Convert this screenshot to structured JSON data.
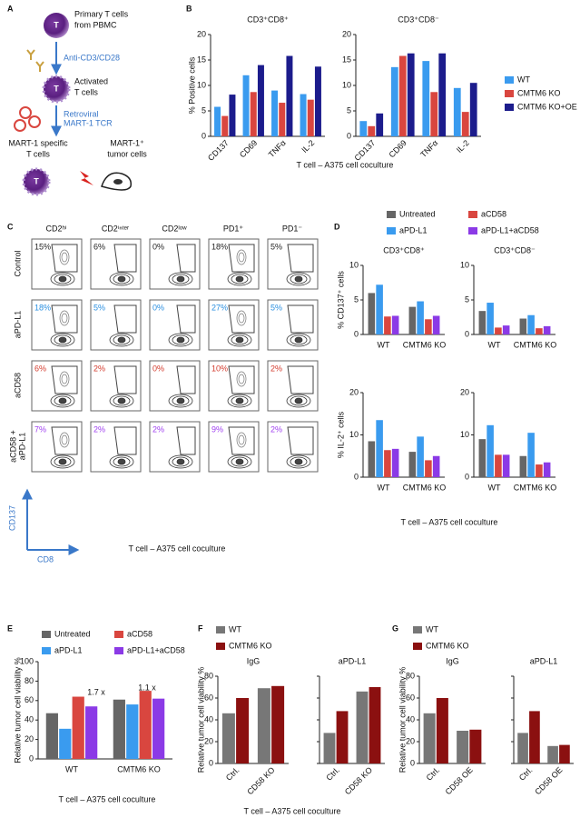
{
  "panel_labels": [
    "A",
    "B",
    "C",
    "D",
    "E",
    "F",
    "G"
  ],
  "panel_a": {
    "cell": "T",
    "items": [
      [
        "Primary T cells",
        "from PBMC"
      ],
      [
        "Anti-CD3/CD28"
      ],
      [
        "Activated",
        "T cells"
      ],
      [
        "Retroviral",
        "MART-1 TCR"
      ],
      [
        "MART-1 specific",
        "T cells"
      ],
      [
        "MART-1⁺",
        "tumor cells"
      ]
    ]
  },
  "panel_c": {
    "columns": [
      "CD2ʰⁱ",
      "CD2ⁱⁿᵗᵉʳ",
      "CD2ˡᵒʷ",
      "PD1⁺",
      "PD1⁻"
    ],
    "rows": [
      [
        "Control"
      ],
      [
        "aPD-L1"
      ],
      [
        "aCD58"
      ],
      [
        "aCD58 +",
        "aPD-L1"
      ]
    ],
    "row_colors": [
      "#222222",
      "#2a8fe0",
      "#d33a2c",
      "#a040f0"
    ],
    "percents": [
      [
        "15%",
        "6%",
        "0%",
        "18%",
        "5%"
      ],
      [
        "18%",
        "5%",
        "0%",
        "27%",
        "5%"
      ],
      [
        "6%",
        "2%",
        "0%",
        "10%",
        "2%"
      ],
      [
        "7%",
        "2%",
        "2%",
        "9%",
        "2%"
      ]
    ],
    "y_marker": "CD137",
    "x_marker": "CD8",
    "caption": "T cell – A375 cell coculture"
  },
  "chart_data": [
    {
      "type": "bar",
      "ylabel": "% Positive cells",
      "xlabel": "T cell – A375 cell coculture",
      "ylim": [
        0,
        20
      ],
      "yticks": [
        0,
        5,
        10,
        15,
        20
      ],
      "legend": [
        {
          "name": "WT",
          "color": "#3a9bef"
        },
        {
          "name": "CMTM6 KO",
          "color": "#d9463f"
        },
        {
          "name": "CMTM6 KO+OE",
          "color": "#1c1c8c"
        }
      ],
      "subplots": [
        {
          "title": "CD3⁺CD8⁺",
          "categories": [
            "CD137",
            "CD69",
            "TNFα",
            "IL-2"
          ],
          "series": [
            {
              "values": [
                5.8,
                12,
                9,
                8.3
              ]
            },
            {
              "values": [
                4,
                8.7,
                6.6,
                7.2
              ]
            },
            {
              "values": [
                8.2,
                14,
                15.8,
                13.7
              ]
            }
          ]
        },
        {
          "title": "CD3⁺CD8⁻",
          "categories": [
            "CD137",
            "CD69",
            "TNFα",
            "IL-2"
          ],
          "series": [
            {
              "values": [
                3,
                13.6,
                14.8,
                9.5
              ]
            },
            {
              "values": [
                2,
                15.8,
                8.7,
                4.8
              ]
            },
            {
              "values": [
                4.5,
                16.3,
                16.3,
                10.5
              ]
            }
          ]
        }
      ]
    },
    {
      "type": "bar",
      "xlabel": "T cell – A375 cell coculture",
      "legend": [
        {
          "name": "Untreated",
          "color": "#666666"
        },
        {
          "name": "aPD-L1",
          "color": "#3a9bef"
        },
        {
          "name": "aCD58",
          "color": "#d9463f"
        },
        {
          "name": "aPD-L1+aCD58",
          "color": "#8b3ae6"
        }
      ],
      "subplots": [
        {
          "title": "CD3⁺CD8⁺",
          "ylabel": "% CD137⁺ cells",
          "ylim": [
            0,
            10
          ],
          "yticks": [
            0,
            5,
            10
          ],
          "categories": [
            "WT",
            "CMTM6 KO"
          ],
          "series": [
            {
              "values": [
                6,
                4
              ]
            },
            {
              "values": [
                7.2,
                4.8
              ]
            },
            {
              "values": [
                2.6,
                2.2
              ]
            },
            {
              "values": [
                2.7,
                2.7
              ]
            }
          ]
        },
        {
          "title": "CD3⁺CD8⁻",
          "ylim": [
            0,
            10
          ],
          "yticks": [
            0,
            5,
            10
          ],
          "categories": [
            "WT",
            "CMTM6 KO"
          ],
          "series": [
            {
              "values": [
                3.4,
                2.3
              ]
            },
            {
              "values": [
                4.6,
                2.8
              ]
            },
            {
              "values": [
                1,
                0.9
              ]
            },
            {
              "values": [
                1.3,
                1.2
              ]
            }
          ]
        },
        {
          "ylabel": "% IL-2⁺ cells",
          "ylim": [
            0,
            20
          ],
          "yticks": [
            0,
            10,
            20
          ],
          "categories": [
            "WT",
            "CMTM6 KO"
          ],
          "series": [
            {
              "values": [
                8.5,
                6
              ]
            },
            {
              "values": [
                13.5,
                9.6
              ]
            },
            {
              "values": [
                6.4,
                4
              ]
            },
            {
              "values": [
                6.7,
                5
              ]
            }
          ]
        },
        {
          "ylim": [
            0,
            20
          ],
          "yticks": [
            0,
            10,
            20
          ],
          "categories": [
            "WT",
            "CMTM6 KO"
          ],
          "series": [
            {
              "values": [
                9,
                5
              ]
            },
            {
              "values": [
                12.3,
                10.5
              ]
            },
            {
              "values": [
                5.3,
                3
              ]
            },
            {
              "values": [
                5.3,
                3.5
              ]
            }
          ]
        }
      ]
    },
    {
      "type": "bar",
      "ylabel": "Relative tumor cell viability %",
      "xlabel": "T cell – A375 cell coculture",
      "ylim": [
        0,
        100
      ],
      "yticks": [
        0,
        20,
        40,
        60,
        80,
        100
      ],
      "legend": [
        {
          "name": "Untreated",
          "color": "#666666"
        },
        {
          "name": "aPD-L1",
          "color": "#3a9bef"
        },
        {
          "name": "aCD58",
          "color": "#d9463f"
        },
        {
          "name": "aPD-L1+aCD58",
          "color": "#8b3ae6"
        }
      ],
      "annotations": [
        "1.7 x",
        "1.1 x"
      ],
      "subplots": [
        {
          "categories": [
            "WT",
            "CMTM6 KO"
          ],
          "series": [
            {
              "values": [
                47,
                61
              ]
            },
            {
              "values": [
                31,
                56
              ]
            },
            {
              "values": [
                64,
                70
              ]
            },
            {
              "values": [
                54,
                62
              ]
            }
          ]
        }
      ]
    },
    {
      "type": "bar",
      "ylabel": "Relative tumor cell viability %",
      "xlabel": "T cell – A375 cell coculture",
      "ylim": [
        0,
        80
      ],
      "yticks": [
        0,
        20,
        40,
        60,
        80
      ],
      "legend": [
        {
          "name": "WT",
          "color": "#777777"
        },
        {
          "name": "CMTM6 KO",
          "color": "#8b1010"
        }
      ],
      "subplots": [
        {
          "title": "IgG",
          "categories": [
            "Ctrl.",
            "CD58 KO"
          ],
          "series": [
            {
              "values": [
                46,
                69
              ]
            },
            {
              "values": [
                60,
                71
              ]
            }
          ]
        },
        {
          "title": "aPD-L1",
          "categories": [
            "Ctrl.",
            "CD58 KO"
          ],
          "series": [
            {
              "values": [
                28,
                66
              ]
            },
            {
              "values": [
                48,
                70
              ]
            }
          ]
        }
      ]
    },
    {
      "type": "bar",
      "ylabel": "Relative tumor cell viability %",
      "ylim": [
        0,
        80
      ],
      "yticks": [
        0,
        20,
        40,
        60,
        80
      ],
      "legend": [
        {
          "name": "WT",
          "color": "#777777"
        },
        {
          "name": "CMTM6 KO",
          "color": "#8b1010"
        }
      ],
      "subplots": [
        {
          "title": "IgG",
          "categories": [
            "Ctrl.",
            "CD58 OE"
          ],
          "series": [
            {
              "values": [
                46,
                30
              ]
            },
            {
              "values": [
                60,
                31
              ]
            }
          ]
        },
        {
          "title": "aPD-L1",
          "categories": [
            "Ctrl.",
            "CD58 OE"
          ],
          "series": [
            {
              "values": [
                28,
                16
              ]
            },
            {
              "values": [
                48,
                17
              ]
            }
          ]
        }
      ]
    }
  ]
}
